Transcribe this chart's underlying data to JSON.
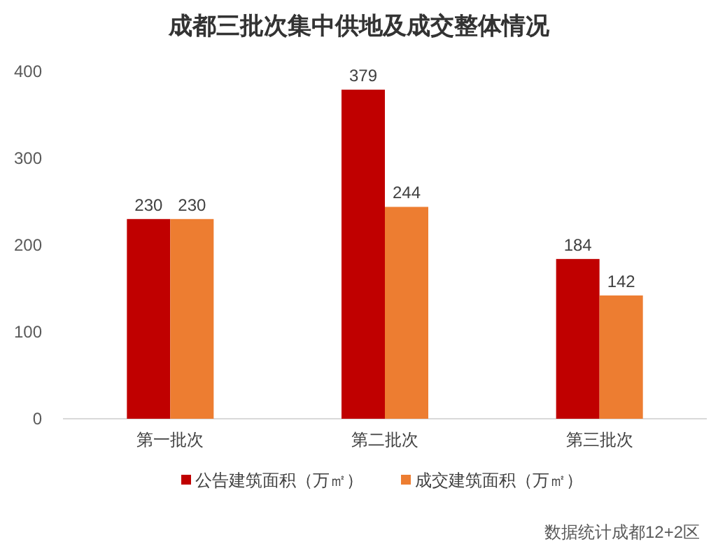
{
  "chart_data": {
    "type": "bar",
    "title": "成都三批次集中供地及成交整体情况",
    "categories": [
      "第一批次",
      "第二批次",
      "第三批次"
    ],
    "series": [
      {
        "name": "公告建筑面积（万㎡）",
        "color": "#c00000",
        "values": [
          230,
          379,
          184
        ]
      },
      {
        "name": "成交建筑面积（万㎡）",
        "color": "#ed7d31",
        "values": [
          230,
          244,
          142
        ]
      }
    ],
    "ylim": [
      0,
      400
    ],
    "yticks": [
      0,
      100,
      200,
      300,
      400
    ],
    "data_labels": true,
    "legend": "bottom",
    "annotations": [
      "数据统计成都12+2区"
    ]
  }
}
